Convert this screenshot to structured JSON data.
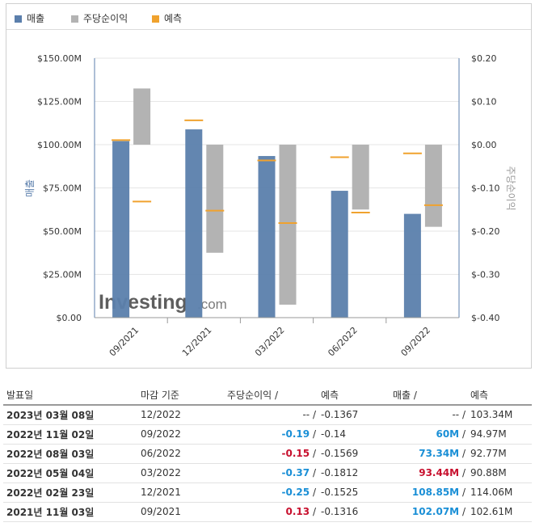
{
  "legend": {
    "revenue": "매출",
    "eps": "주당순이익",
    "forecast": "예측"
  },
  "colors": {
    "revenue": "#5b7fac",
    "eps": "#b3b3b3",
    "forecast": "#f0a22e",
    "positive": "#c8102e",
    "negative": "#1a8fd6"
  },
  "watermark": {
    "text": "Investing",
    "suffix": ".com"
  },
  "chart_data": {
    "type": "bar",
    "categories": [
      "09/2021",
      "12/2021",
      "03/2022",
      "06/2022",
      "09/2022"
    ],
    "y_left": {
      "label": "매출",
      "range": [
        0,
        150
      ],
      "ticks": [
        0,
        25,
        50,
        75,
        100,
        125,
        150
      ],
      "tick_labels": [
        "$0.00",
        "$25.00M",
        "$50.00M",
        "$75.00M",
        "$100.00M",
        "$125.00M",
        "$150.00M"
      ]
    },
    "y_right": {
      "label": "주당순이익",
      "range": [
        -0.4,
        0.2
      ],
      "ticks": [
        -0.4,
        -0.3,
        -0.2,
        -0.1,
        0,
        0.1,
        0.2
      ],
      "tick_labels": [
        "$-0.40",
        "$-0.30",
        "$-0.20",
        "$-0.10",
        "$0.00",
        "$0.10",
        "$0.20"
      ]
    },
    "grid": true,
    "legend_position": "top-left",
    "series": [
      {
        "name": "매출",
        "axis": "left",
        "values": [
          102.07,
          108.85,
          93.44,
          73.34,
          60
        ]
      },
      {
        "name": "주당순이익",
        "axis": "right",
        "values": [
          0.13,
          -0.25,
          -0.37,
          -0.15,
          -0.19
        ]
      }
    ],
    "forecast": {
      "name": "예측",
      "revenue": [
        102.61,
        114.06,
        90.88,
        92.77,
        94.97
      ],
      "eps": [
        -0.1316,
        -0.1525,
        -0.1812,
        -0.1569,
        -0.14
      ]
    }
  },
  "table": {
    "headers": {
      "date": "발표일",
      "period": "마감 기준",
      "eps": "주당순이익",
      "eps_forecast": "예측",
      "revenue": "매출",
      "revenue_forecast": "예측",
      "slash": "/"
    },
    "rows": [
      {
        "date": "2023년 03월 08일",
        "period": "12/2022",
        "eps": "--",
        "eps_tone": "neu",
        "eps_forecast": "-0.1367",
        "revenue": "--",
        "rev_tone": "neu",
        "revenue_forecast": "103.34M"
      },
      {
        "date": "2022년 11월 02일",
        "period": "09/2022",
        "eps": "-0.19",
        "eps_tone": "neg",
        "eps_forecast": "-0.14",
        "revenue": "60M",
        "rev_tone": "neg",
        "revenue_forecast": "94.97M"
      },
      {
        "date": "2022년 08월 03일",
        "period": "06/2022",
        "eps": "-0.15",
        "eps_tone": "pos",
        "eps_forecast": "-0.1569",
        "revenue": "73.34M",
        "rev_tone": "neg",
        "revenue_forecast": "92.77M"
      },
      {
        "date": "2022년 05월 04일",
        "period": "03/2022",
        "eps": "-0.37",
        "eps_tone": "neg",
        "eps_forecast": "-0.1812",
        "revenue": "93.44M",
        "rev_tone": "pos",
        "revenue_forecast": "90.88M"
      },
      {
        "date": "2022년 02월 23일",
        "period": "12/2021",
        "eps": "-0.25",
        "eps_tone": "neg",
        "eps_forecast": "-0.1525",
        "revenue": "108.85M",
        "rev_tone": "neg",
        "revenue_forecast": "114.06M"
      },
      {
        "date": "2021년 11월 03일",
        "period": "09/2021",
        "eps": "0.13",
        "eps_tone": "pos",
        "eps_forecast": "-0.1316",
        "revenue": "102.07M",
        "rev_tone": "neg",
        "revenue_forecast": "102.61M"
      }
    ]
  }
}
